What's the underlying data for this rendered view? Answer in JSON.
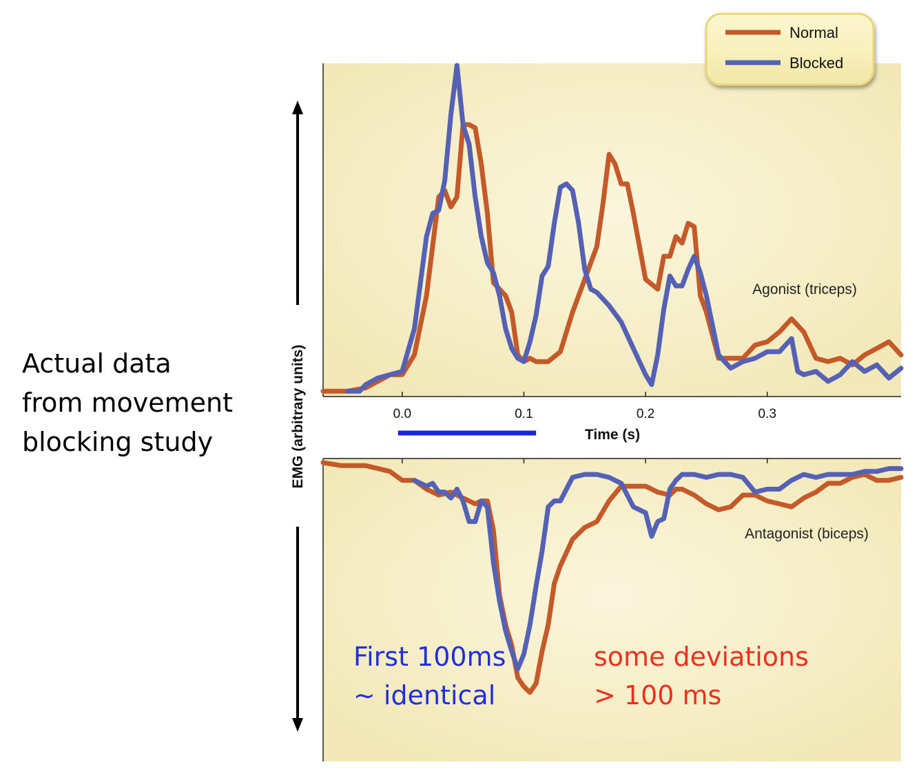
{
  "side_note": {
    "lines": [
      "Actual data",
      "from movement",
      "blocking study"
    ]
  },
  "annotations": {
    "blue": {
      "lines": [
        "First 100ms",
        "~ identical"
      ],
      "color": "#1f2fe0"
    },
    "red": {
      "lines": [
        "some deviations",
        "> 100 ms"
      ],
      "color": "#e8321e"
    }
  },
  "colors": {
    "panel_bg": "#f6efc4",
    "normal": "#c45a2a",
    "blocked": "#5561b4",
    "highlight_bar": "#1a22e6"
  },
  "chart_data": {
    "type": "line",
    "ylabel": "EMG (arbitrary units)",
    "xlabel": "Time (s)",
    "xlim": [
      -0.065,
      0.41
    ],
    "x_ticks": [
      0.0,
      0.1,
      0.2,
      0.3
    ],
    "x_tick_labels": [
      "0.0",
      "0.1",
      "0.2",
      "0.3"
    ],
    "legend": {
      "position": "top-right",
      "entries": [
        "Normal",
        "Blocked"
      ]
    },
    "highlight_interval": [
      0.0,
      0.11
    ],
    "panels": [
      {
        "name": "agonist",
        "label": "Agonist (triceps)",
        "ylim": [
          0,
          1
        ],
        "series": [
          {
            "name": "Normal",
            "x": [
              -0.065,
              -0.045,
              -0.03,
              -0.02,
              -0.01,
              0.0,
              0.01,
              0.02,
              0.03,
              0.035,
              0.04,
              0.045,
              0.05,
              0.055,
              0.06,
              0.065,
              0.07,
              0.075,
              0.08,
              0.085,
              0.09,
              0.095,
              0.1,
              0.105,
              0.11,
              0.12,
              0.13,
              0.14,
              0.15,
              0.16,
              0.165,
              0.17,
              0.175,
              0.18,
              0.185,
              0.19,
              0.2,
              0.21,
              0.215,
              0.22,
              0.225,
              0.23,
              0.235,
              0.24,
              0.245,
              0.25,
              0.255,
              0.26,
              0.27,
              0.28,
              0.29,
              0.3,
              0.31,
              0.32,
              0.33,
              0.34,
              0.35,
              0.36,
              0.37,
              0.38,
              0.39,
              0.4,
              0.41
            ],
            "values": [
              0.01,
              0.01,
              0.02,
              0.04,
              0.06,
              0.06,
              0.12,
              0.3,
              0.6,
              0.62,
              0.57,
              0.6,
              0.82,
              0.82,
              0.81,
              0.7,
              0.55,
              0.34,
              0.32,
              0.3,
              0.25,
              0.12,
              0.1,
              0.11,
              0.1,
              0.1,
              0.13,
              0.25,
              0.35,
              0.45,
              0.58,
              0.73,
              0.7,
              0.64,
              0.64,
              0.55,
              0.35,
              0.32,
              0.42,
              0.42,
              0.48,
              0.46,
              0.52,
              0.51,
              0.3,
              0.25,
              0.18,
              0.11,
              0.11,
              0.11,
              0.15,
              0.16,
              0.19,
              0.23,
              0.19,
              0.11,
              0.1,
              0.11,
              0.09,
              0.12,
              0.14,
              0.16,
              0.12
            ]
          },
          {
            "name": "Blocked",
            "x": [
              -0.045,
              -0.035,
              -0.03,
              -0.02,
              -0.01,
              0.0,
              0.01,
              0.02,
              0.025,
              0.03,
              0.035,
              0.04,
              0.045,
              0.05,
              0.055,
              0.06,
              0.065,
              0.07,
              0.075,
              0.08,
              0.085,
              0.09,
              0.095,
              0.1,
              0.105,
              0.11,
              0.115,
              0.12,
              0.125,
              0.13,
              0.135,
              0.14,
              0.145,
              0.15,
              0.155,
              0.16,
              0.17,
              0.18,
              0.19,
              0.2,
              0.205,
              0.21,
              0.215,
              0.22,
              0.225,
              0.23,
              0.235,
              0.24,
              0.245,
              0.25,
              0.255,
              0.26,
              0.27,
              0.28,
              0.29,
              0.3,
              0.31,
              0.32,
              0.325,
              0.33,
              0.34,
              0.35,
              0.36,
              0.37,
              0.38,
              0.39,
              0.4,
              0.41
            ],
            "values": [
              0.01,
              0.01,
              0.03,
              0.05,
              0.06,
              0.07,
              0.2,
              0.48,
              0.55,
              0.56,
              0.65,
              0.85,
              1.0,
              0.82,
              0.76,
              0.6,
              0.48,
              0.4,
              0.37,
              0.3,
              0.2,
              0.14,
              0.11,
              0.1,
              0.16,
              0.24,
              0.36,
              0.39,
              0.52,
              0.63,
              0.64,
              0.62,
              0.52,
              0.38,
              0.32,
              0.31,
              0.27,
              0.22,
              0.14,
              0.06,
              0.03,
              0.12,
              0.26,
              0.36,
              0.33,
              0.33,
              0.38,
              0.42,
              0.37,
              0.3,
              0.21,
              0.12,
              0.08,
              0.1,
              0.11,
              0.13,
              0.13,
              0.17,
              0.07,
              0.06,
              0.07,
              0.04,
              0.06,
              0.1,
              0.07,
              0.09,
              0.05,
              0.08
            ]
          }
        ]
      },
      {
        "name": "antagonist",
        "label": "Antagonist (biceps)",
        "ylim": [
          0,
          1
        ],
        "series": [
          {
            "name": "Normal",
            "x": [
              -0.065,
              -0.05,
              -0.03,
              -0.01,
              0.0,
              0.01,
              0.02,
              0.03,
              0.04,
              0.05,
              0.06,
              0.065,
              0.07,
              0.075,
              0.08,
              0.085,
              0.09,
              0.095,
              0.1,
              0.105,
              0.11,
              0.115,
              0.12,
              0.125,
              0.13,
              0.14,
              0.15,
              0.16,
              0.17,
              0.18,
              0.19,
              0.2,
              0.21,
              0.22,
              0.225,
              0.23,
              0.24,
              0.25,
              0.26,
              0.27,
              0.28,
              0.29,
              0.3,
              0.31,
              0.32,
              0.33,
              0.34,
              0.35,
              0.36,
              0.37,
              0.38,
              0.39,
              0.4,
              0.41
            ],
            "values": [
              0.0,
              0.01,
              0.01,
              0.03,
              0.06,
              0.06,
              0.09,
              0.11,
              0.1,
              0.12,
              0.14,
              0.13,
              0.13,
              0.23,
              0.45,
              0.55,
              0.62,
              0.73,
              0.76,
              0.78,
              0.75,
              0.64,
              0.55,
              0.41,
              0.35,
              0.26,
              0.22,
              0.2,
              0.13,
              0.08,
              0.08,
              0.08,
              0.1,
              0.11,
              0.09,
              0.09,
              0.11,
              0.14,
              0.16,
              0.15,
              0.11,
              0.11,
              0.13,
              0.14,
              0.15,
              0.12,
              0.1,
              0.07,
              0.07,
              0.05,
              0.04,
              0.06,
              0.06,
              0.05
            ]
          },
          {
            "name": "Blocked",
            "x": [
              0.01,
              0.02,
              0.025,
              0.03,
              0.035,
              0.04,
              0.045,
              0.05,
              0.055,
              0.06,
              0.065,
              0.07,
              0.075,
              0.08,
              0.085,
              0.09,
              0.095,
              0.1,
              0.105,
              0.11,
              0.115,
              0.12,
              0.125,
              0.13,
              0.14,
              0.15,
              0.16,
              0.17,
              0.18,
              0.19,
              0.2,
              0.205,
              0.21,
              0.215,
              0.22,
              0.225,
              0.23,
              0.24,
              0.25,
              0.26,
              0.27,
              0.28,
              0.29,
              0.3,
              0.31,
              0.32,
              0.33,
              0.34,
              0.35,
              0.36,
              0.37,
              0.38,
              0.39,
              0.4,
              0.41
            ],
            "values": [
              0.06,
              0.08,
              0.07,
              0.1,
              0.1,
              0.12,
              0.09,
              0.13,
              0.2,
              0.2,
              0.13,
              0.15,
              0.34,
              0.47,
              0.57,
              0.64,
              0.7,
              0.65,
              0.55,
              0.42,
              0.3,
              0.15,
              0.13,
              0.13,
              0.05,
              0.04,
              0.04,
              0.05,
              0.07,
              0.15,
              0.17,
              0.25,
              0.2,
              0.19,
              0.09,
              0.06,
              0.04,
              0.04,
              0.05,
              0.04,
              0.04,
              0.05,
              0.1,
              0.09,
              0.09,
              0.06,
              0.04,
              0.05,
              0.04,
              0.04,
              0.04,
              0.03,
              0.03,
              0.02,
              0.02
            ]
          }
        ]
      }
    ]
  }
}
